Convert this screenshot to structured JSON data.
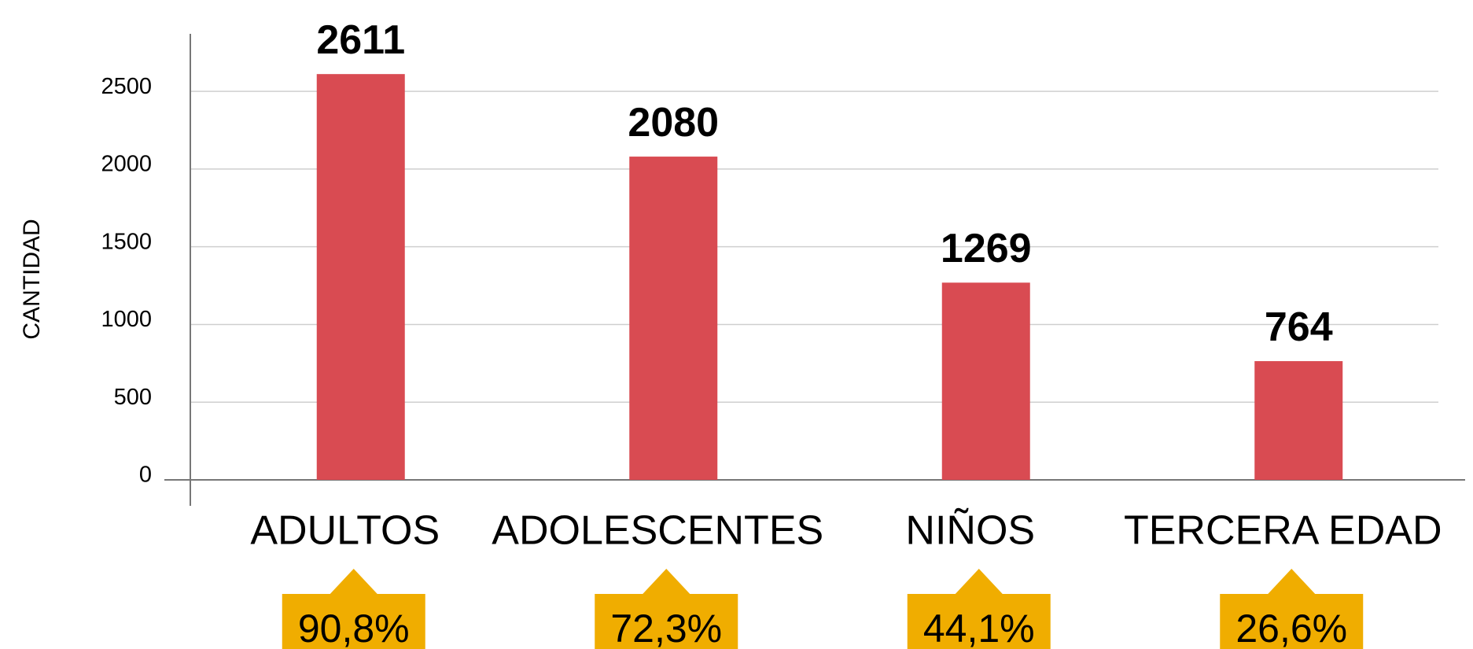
{
  "chart_data": {
    "type": "bar",
    "y_label": "CANTIDAD",
    "categories": [
      "ADULTOS",
      "ADOLESCENTES",
      "NIÑOS",
      "TERCERA EDAD"
    ],
    "values": [
      2611,
      2080,
      1269,
      764
    ],
    "color": "#d94b52",
    "percent_values": [
      90.8,
      72.3,
      44.1,
      26.6
    ],
    "percent_labels": [
      "90,8%",
      "72,3%",
      "44,1%",
      "26,6%"
    ],
    "percent_color": "#f0ad00",
    "ylim": [
      0,
      2870
    ],
    "yticks": [
      0,
      500,
      1000,
      1500,
      2000,
      2500
    ],
    "grid": true
  }
}
